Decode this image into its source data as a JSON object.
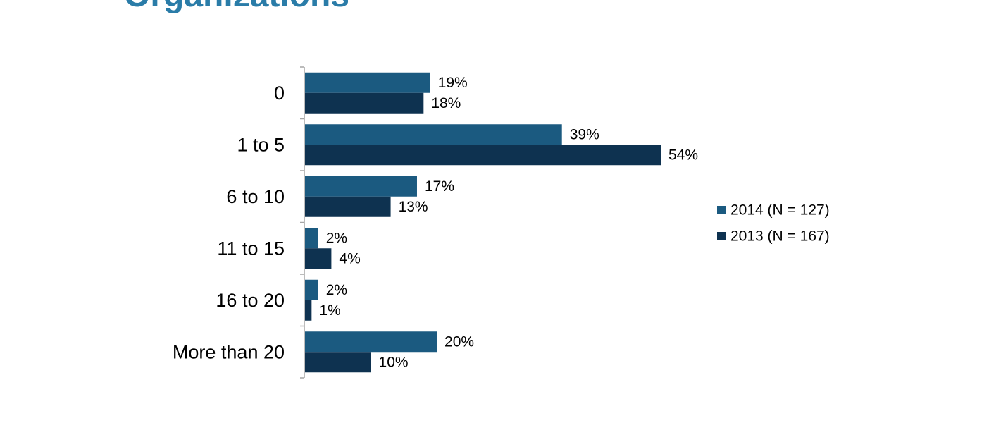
{
  "page": {
    "title": "Organizations"
  },
  "colors": {
    "title": "#2a7ca8",
    "series_2014": "#1b5a80",
    "series_2013": "#0e3250",
    "axis": "#a6a6a6"
  },
  "chart_data": {
    "type": "bar",
    "orientation": "horizontal",
    "title": "",
    "xlabel": "",
    "ylabel": "",
    "categories": [
      "0",
      "1 to 5",
      "6 to 10",
      "11 to 15",
      "16 to 20",
      "More than 20"
    ],
    "series": [
      {
        "name": "2014 (N = 127)",
        "values": [
          19,
          39,
          17,
          2,
          2,
          20
        ],
        "labels": [
          "19%",
          "39%",
          "17%",
          "2%",
          "2%",
          "20%"
        ],
        "color": "#1b5a80"
      },
      {
        "name": "2013 (N = 167)",
        "values": [
          18,
          54,
          13,
          4,
          1,
          10
        ],
        "labels": [
          "18%",
          "54%",
          "13%",
          "4%",
          "1%",
          "10%"
        ],
        "color": "#0e3250"
      }
    ],
    "value_unit": "%",
    "xlim": [
      0,
      100
    ],
    "grid": false,
    "legend_position": "right"
  }
}
